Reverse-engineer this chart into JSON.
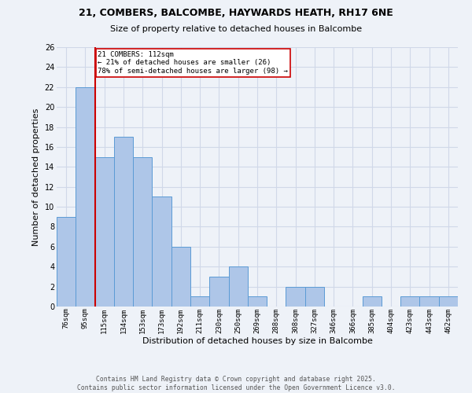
{
  "title_line1": "21, COMBERS, BALCOMBE, HAYWARDS HEATH, RH17 6NE",
  "title_line2": "Size of property relative to detached houses in Balcombe",
  "xlabel": "Distribution of detached houses by size in Balcombe",
  "ylabel": "Number of detached properties",
  "bin_labels": [
    "76sqm",
    "95sqm",
    "115sqm",
    "134sqm",
    "153sqm",
    "173sqm",
    "192sqm",
    "211sqm",
    "230sqm",
    "250sqm",
    "269sqm",
    "288sqm",
    "308sqm",
    "327sqm",
    "346sqm",
    "366sqm",
    "385sqm",
    "404sqm",
    "423sqm",
    "443sqm",
    "462sqm"
  ],
  "bin_values": [
    9,
    22,
    15,
    17,
    15,
    11,
    6,
    1,
    3,
    4,
    1,
    0,
    2,
    2,
    0,
    0,
    1,
    0,
    1,
    1,
    1
  ],
  "bar_color": "#aec6e8",
  "bar_edge_color": "#5b9bd5",
  "vline_x": 1.5,
  "vline_color": "#cc0000",
  "annotation_text": "21 COMBERS: 112sqm\n← 21% of detached houses are smaller (26)\n78% of semi-detached houses are larger (98) →",
  "annotation_box_color": "#ffffff",
  "annotation_box_edge": "#cc0000",
  "ylim": [
    0,
    26
  ],
  "yticks": [
    0,
    2,
    4,
    6,
    8,
    10,
    12,
    14,
    16,
    18,
    20,
    22,
    24,
    26
  ],
  "grid_color": "#d0d8e8",
  "background_color": "#eef2f8",
  "footer_line1": "Contains HM Land Registry data © Crown copyright and database right 2025.",
  "footer_line2": "Contains public sector information licensed under the Open Government Licence v3.0."
}
